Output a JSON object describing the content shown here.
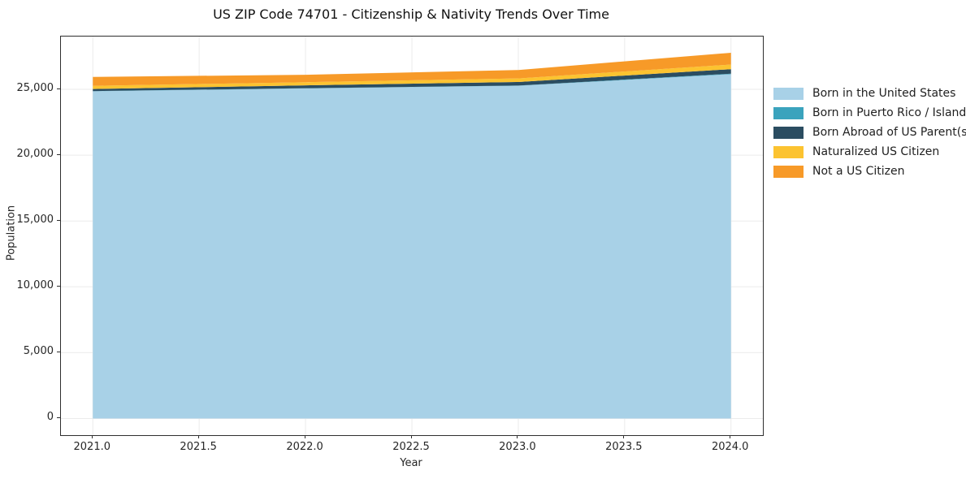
{
  "title": "US ZIP Code 74701 - Citizenship & Nativity Trends Over Time",
  "chart_data": {
    "type": "area",
    "stacked": true,
    "title": "US ZIP Code 74701 - Citizenship & Nativity Trends Over Time",
    "xlabel": "Year",
    "ylabel": "Population",
    "x": [
      2021,
      2022,
      2023,
      2024
    ],
    "series": [
      {
        "name": "Born in the United States",
        "color": "#a8d1e7",
        "values": [
          24850,
          25070,
          25270,
          26150
        ]
      },
      {
        "name": "Born in Puerto Rico / Islands",
        "color": "#3ba3bd",
        "values": [
          15,
          15,
          20,
          40
        ]
      },
      {
        "name": "Born Abroad of US Parent(s)",
        "color": "#2b4d61",
        "values": [
          160,
          220,
          270,
          340
        ]
      },
      {
        "name": "Naturalized US Citizen",
        "color": "#fcc330",
        "values": [
          240,
          240,
          270,
          350
        ]
      },
      {
        "name": "Not a US Citizen",
        "color": "#f79a28",
        "values": [
          680,
          560,
          640,
          900
        ]
      }
    ],
    "totals": [
      25945,
      26105,
      26470,
      27780
    ],
    "xlim": [
      2020.85,
      2024.15
    ],
    "ylim": [
      -1265,
      29010
    ],
    "xticks": {
      "values": [
        2021.0,
        2021.5,
        2022.0,
        2022.5,
        2023.0,
        2023.5,
        2024.0
      ],
      "labels": [
        "2021.0",
        "2021.5",
        "2022.0",
        "2022.5",
        "2023.0",
        "2023.5",
        "2024.0"
      ]
    },
    "yticks": {
      "values": [
        0,
        5000,
        10000,
        15000,
        20000,
        25000
      ],
      "labels": [
        "0",
        "5,000",
        "10,000",
        "15,000",
        "20,000",
        "25,000"
      ]
    },
    "grid": true,
    "grid_color": "#ebebeb",
    "legend_position": "right-outside"
  }
}
